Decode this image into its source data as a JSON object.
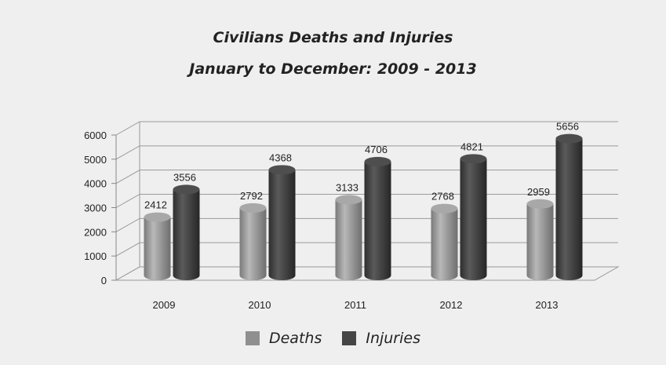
{
  "chart_data": {
    "type": "bar",
    "title": "Civilians Deaths and Injuries",
    "subtitle": "January to December: 2009 - 2013",
    "categories": [
      "2009",
      "2010",
      "2011",
      "2012",
      "2013"
    ],
    "series": [
      {
        "name": "Deaths",
        "values": [
          2412,
          2792,
          3133,
          2768,
          2959
        ],
        "color": "#8f8f8f"
      },
      {
        "name": "Injuries",
        "values": [
          3556,
          4368,
          4706,
          4821,
          5656
        ],
        "color": "#454545"
      }
    ],
    "y_ticks": [
      "0",
      "1000",
      "2000",
      "3000",
      "4000",
      "5000",
      "6000"
    ],
    "ylim": [
      0,
      6000
    ],
    "grid": true,
    "legend_position": "bottom",
    "style": "3d-cylinder"
  }
}
